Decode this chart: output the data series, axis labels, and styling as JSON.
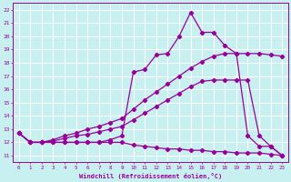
{
  "xlabel": "Windchill (Refroidissement éolien,°C)",
  "bg_color": "#c8f0f0",
  "line_color": "#990099",
  "grid_color": "#ffffff",
  "spine_color": "#990099",
  "xlim": [
    -0.5,
    23.5
  ],
  "ylim": [
    10.5,
    22.5
  ],
  "xticks": [
    0,
    1,
    2,
    3,
    4,
    5,
    6,
    7,
    8,
    9,
    10,
    11,
    12,
    13,
    14,
    15,
    16,
    17,
    18,
    19,
    20,
    21,
    22,
    23
  ],
  "yticks": [
    11,
    12,
    13,
    14,
    15,
    16,
    17,
    18,
    19,
    20,
    21,
    22
  ],
  "line_peaked_x": [
    0,
    1,
    2,
    3,
    4,
    5,
    6,
    7,
    8,
    9,
    10,
    11,
    12,
    13,
    14,
    15,
    16,
    17,
    18,
    19,
    20,
    21,
    22,
    23
  ],
  "line_peaked_y": [
    12.7,
    12.0,
    12.0,
    12.0,
    12.0,
    12.0,
    12.0,
    12.0,
    12.2,
    12.5,
    17.3,
    17.5,
    18.6,
    18.7,
    20.0,
    21.8,
    20.3,
    20.3,
    19.3,
    18.7,
    12.5,
    11.7,
    11.7,
    11.0
  ],
  "line_upper_x": [
    0,
    1,
    2,
    3,
    4,
    5,
    6,
    7,
    8,
    9,
    10,
    11,
    12,
    13,
    14,
    15,
    16,
    17,
    18,
    19,
    20,
    21,
    22,
    23
  ],
  "line_upper_y": [
    12.7,
    12.0,
    12.0,
    12.2,
    12.5,
    12.7,
    13.0,
    13.2,
    13.5,
    13.8,
    14.5,
    15.2,
    15.8,
    16.4,
    17.0,
    17.6,
    18.1,
    18.5,
    18.7,
    18.7,
    18.7,
    18.7,
    18.6,
    18.5
  ],
  "line_lower_x": [
    0,
    1,
    2,
    3,
    4,
    5,
    6,
    7,
    8,
    9,
    10,
    11,
    12,
    13,
    14,
    15,
    16,
    17,
    18,
    19,
    20,
    21,
    22,
    23
  ],
  "line_lower_y": [
    12.7,
    12.0,
    12.0,
    12.1,
    12.3,
    12.5,
    12.6,
    12.8,
    13.0,
    13.2,
    13.7,
    14.2,
    14.7,
    15.2,
    15.7,
    16.2,
    16.6,
    16.7,
    16.7,
    16.7,
    16.7,
    12.5,
    11.7,
    11.0
  ],
  "line_flat_x": [
    0,
    1,
    2,
    3,
    4,
    5,
    6,
    7,
    8,
    9,
    10,
    11,
    12,
    13,
    14,
    15,
    16,
    17,
    18,
    19,
    20,
    21,
    22,
    23
  ],
  "line_flat_y": [
    12.7,
    12.0,
    12.0,
    12.0,
    12.0,
    12.0,
    12.0,
    12.0,
    12.0,
    12.0,
    11.8,
    11.7,
    11.6,
    11.5,
    11.5,
    11.4,
    11.4,
    11.3,
    11.3,
    11.2,
    11.2,
    11.2,
    11.1,
    11.0
  ]
}
